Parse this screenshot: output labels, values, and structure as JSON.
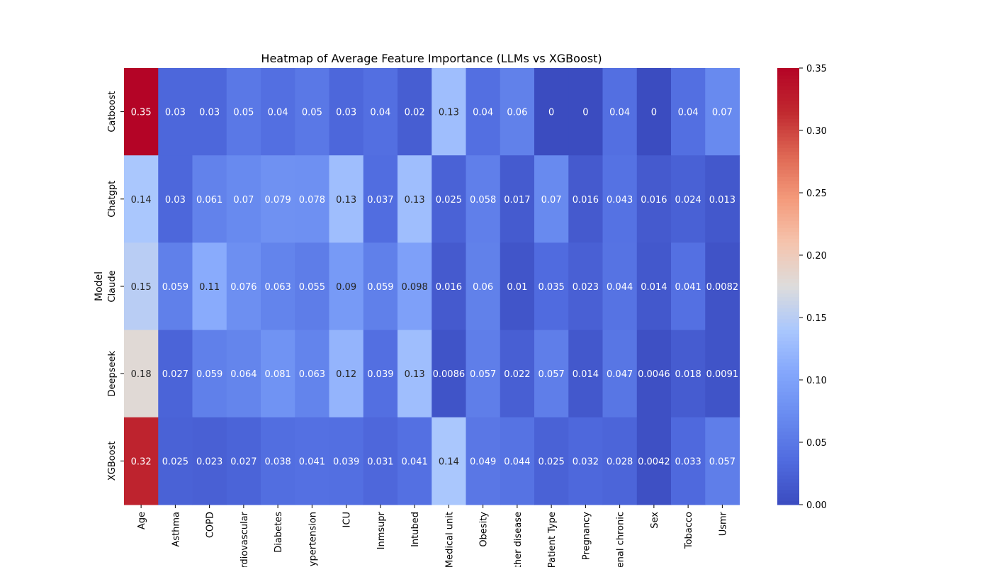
{
  "chart_data": {
    "type": "heatmap",
    "title": "Heatmap of Average Feature Importance (LLMs vs XGBoost)",
    "ylabel": "Model",
    "xlabel": "",
    "colormap": "coolwarm",
    "color_range": [
      0.0,
      0.35
    ],
    "colorbar_ticks": [
      "0.00",
      "0.05",
      "0.10",
      "0.15",
      "0.20",
      "0.25",
      "0.30",
      "0.35"
    ],
    "rows": [
      "Catboost",
      "Chatgpt",
      "Claude",
      "Deepseek",
      "XGBoost"
    ],
    "columns": [
      "Age",
      "Asthma",
      "COPD",
      "Cardiovascular",
      "Diabetes",
      "Hypertension",
      "ICU",
      "Inmsupr",
      "Intubed",
      "Medical unit",
      "Obesity",
      "Other disease",
      "Patient Type",
      "Pregnancy",
      "Renal chronic",
      "Sex",
      "Tobacco",
      "Usmr"
    ],
    "values": [
      [
        0.35,
        0.03,
        0.03,
        0.05,
        0.04,
        0.05,
        0.03,
        0.04,
        0.02,
        0.13,
        0.04,
        0.06,
        0,
        0,
        0.04,
        0,
        0.04,
        0.07
      ],
      [
        0.14,
        0.03,
        0.061,
        0.07,
        0.079,
        0.078,
        0.13,
        0.037,
        0.13,
        0.025,
        0.058,
        0.017,
        0.07,
        0.016,
        0.043,
        0.016,
        0.024,
        0.013
      ],
      [
        0.15,
        0.059,
        0.11,
        0.076,
        0.063,
        0.055,
        0.09,
        0.059,
        0.098,
        0.016,
        0.06,
        0.01,
        0.035,
        0.023,
        0.044,
        0.014,
        0.041,
        0.0082
      ],
      [
        0.18,
        0.027,
        0.059,
        0.064,
        0.081,
        0.063,
        0.12,
        0.039,
        0.13,
        0.0086,
        0.057,
        0.022,
        0.057,
        0.014,
        0.047,
        0.0046,
        0.018,
        0.0091
      ],
      [
        0.32,
        0.025,
        0.023,
        0.027,
        0.038,
        0.041,
        0.039,
        0.031,
        0.041,
        0.14,
        0.049,
        0.044,
        0.025,
        0.032,
        0.028,
        0.0042,
        0.033,
        0.057
      ]
    ]
  }
}
